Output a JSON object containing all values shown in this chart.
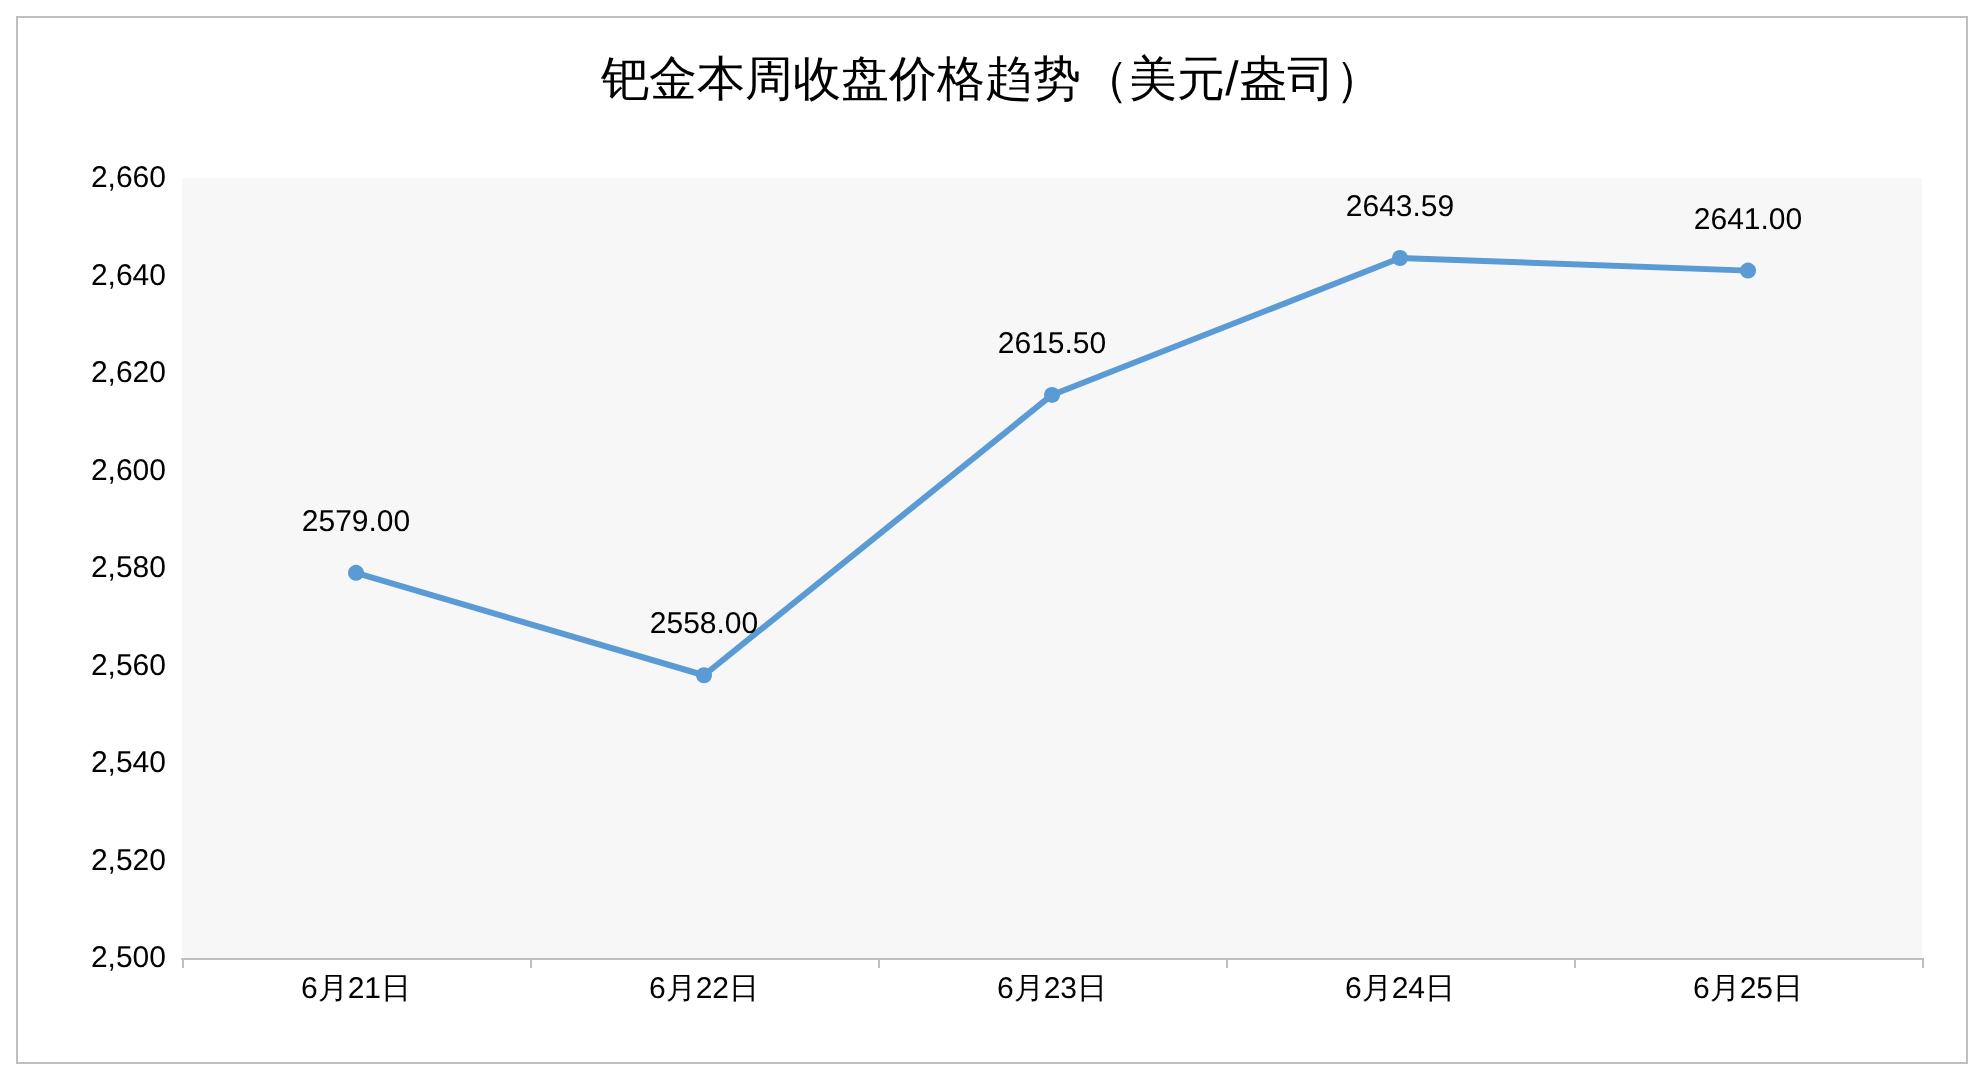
{
  "chart_data": {
    "type": "line",
    "title": "钯金本周收盘价格趋势（美元/盎司）",
    "categories": [
      "6月21日",
      "6月22日",
      "6月23日",
      "6月24日",
      "6月25日"
    ],
    "series": [
      {
        "color": "#5b9bd5",
        "values": [
          2579,
          2558,
          2615.5,
          2643.59,
          2641
        ],
        "value_labels": [
          "2579.00",
          "2558.00",
          "2615.50",
          "2643.59",
          "2641.00"
        ]
      }
    ],
    "ylim": [
      2500,
      2660
    ],
    "yticks": [
      {
        "value": 2500,
        "label": "2,500"
      },
      {
        "value": 2520,
        "label": "2,520"
      },
      {
        "value": 2540,
        "label": "2,540"
      },
      {
        "value": 2560,
        "label": "2,560"
      },
      {
        "value": 2580,
        "label": "2,580"
      },
      {
        "value": 2600,
        "label": "2,600"
      },
      {
        "value": 2620,
        "label": "2,620"
      },
      {
        "value": 2640,
        "label": "2,640"
      },
      {
        "value": 2660,
        "label": "2,660"
      }
    ],
    "grid": false,
    "marker": "circle",
    "line_style": "solid"
  }
}
